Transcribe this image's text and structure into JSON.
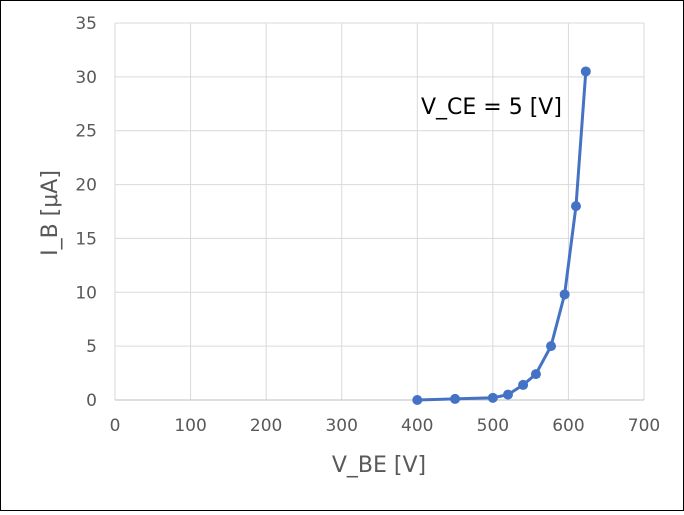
{
  "chart_data": {
    "type": "scatter",
    "title": "",
    "annotation": "V_CE = 5 [V]",
    "xlabel": "V_BE [V]",
    "ylabel": "I_B [μA]",
    "xlim": [
      0,
      700
    ],
    "ylim": [
      0,
      35
    ],
    "xticks": [
      0,
      100,
      200,
      300,
      400,
      500,
      600,
      700
    ],
    "yticks": [
      0,
      5,
      10,
      15,
      20,
      25,
      30,
      35
    ],
    "grid": true,
    "legend": "none",
    "series": [
      {
        "x": [
          400,
          450,
          500,
          520,
          540,
          557,
          577,
          595,
          610,
          623
        ],
        "y": [
          0,
          0.1,
          0.2,
          0.5,
          1.4,
          2.4,
          5.0,
          9.8,
          18.0,
          30.5
        ],
        "color": "#4472C4",
        "line": "straight-with-markers"
      }
    ]
  },
  "colors": {
    "grid": "#d9d9d9",
    "axis": "#bfbfbf",
    "text": "#595959",
    "series": "#4472C4"
  }
}
